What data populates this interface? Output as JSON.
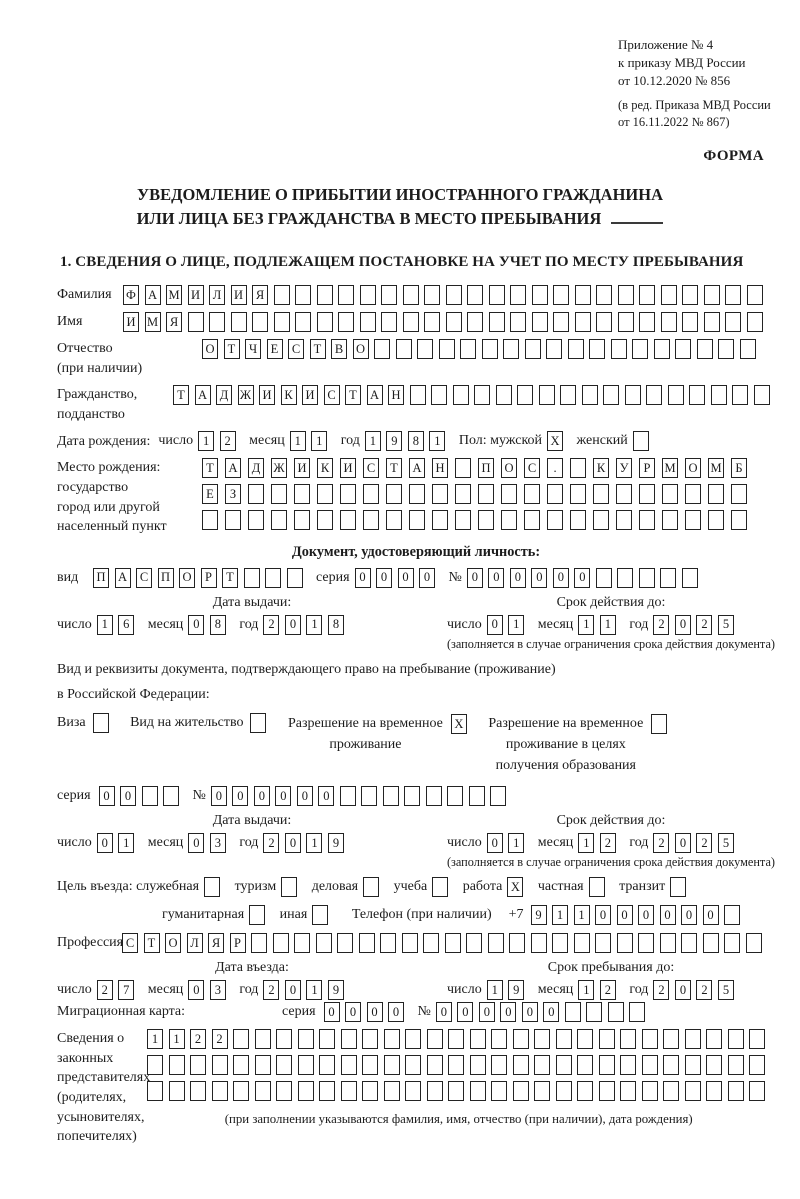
{
  "doc": {
    "appendix": [
      "Приложение № 4",
      "к приказу МВД России",
      "от 10.12.2020 № 856"
    ],
    "revision": [
      "(в ред. Приказа МВД России",
      "от 16.11.2022 № 867)"
    ],
    "form_marker": "ФОРМА",
    "title1": "УВЕДОМЛЕНИЕ О ПРИБЫТИИ ИНОСТРАННОГО ГРАЖДАНИНА",
    "title2": "ИЛИ ЛИЦА БЕЗ ГРАЖДАНСТВА В МЕСТО ПРЕБЫВАНИЯ",
    "section1_heading": "1. СВЕДЕНИЯ О ЛИЦЕ, ПОДЛЕЖАЩЕМ ПОСТАНОВКЕ НА УЧЕТ ПО МЕСТУ ПРЕБЫВАНИЯ"
  },
  "labels": {
    "surname": "Фамилия",
    "given_name": "Имя",
    "patronymic": "Отчество",
    "patronymic_note": "(при наличии)",
    "citizenship1": "Гражданство,",
    "citizenship2": "подданство",
    "birth_date": "Дата рождения:",
    "day": "число",
    "month": "месяц",
    "year": "год",
    "sex_male": "Пол: мужской",
    "sex_female": "женский",
    "birth_place1": "Место рождения:",
    "birth_place2": "государство",
    "birth_place3": "город или другой",
    "birth_place4": "населенный пункт",
    "identity_doc_heading": "Документ, удостоверяющий личность:",
    "doc_type": "вид",
    "series": "серия",
    "number": "№",
    "issue_date": "Дата выдачи:",
    "valid_until": "Срок действия до:",
    "valid_note": "(заполняется в случае ограничения срока действия документа)",
    "residence_doc_line1": "Вид и реквизиты документа, подтверждающего право на пребывание (проживание)",
    "residence_doc_line2": "в Российской Федерации:",
    "visa": "Виза",
    "residence_permit": "Вид на жительство",
    "temp_residence1": "Разрешение на временное",
    "temp_residence2": "проживание",
    "temp_edu1": "Разрешение на временное",
    "temp_edu2": "проживание в целях",
    "temp_edu3": "получения образования",
    "purpose_head": "Цель въезда: служебная",
    "tourism": "туризм",
    "business": "деловая",
    "study": "учеба",
    "work": "работа",
    "private": "частная",
    "transit": "транзит",
    "humanitarian": "гуманитарная",
    "other": "иная",
    "phone": "Телефон (при наличии)",
    "phone_prefix": "+7",
    "profession": "Профессия",
    "entry_date": "Дата въезда:",
    "stay_until": "Срок пребывания до:",
    "migration_card": "Миграционная карта:",
    "representatives": [
      "Сведения о",
      "законных",
      "представителях",
      "(родителях,",
      "усыновителях,",
      "попечителях)"
    ],
    "representatives_note": "(при заполнении указываются фамилия, имя, отчество (при наличии), дата рождения)"
  },
  "fields": {
    "surname": {
      "v": "ФАМИЛИЯ",
      "n": 30
    },
    "given_name": {
      "v": "ИМЯ",
      "n": 30
    },
    "patronymic": {
      "v": "ОТЧЕСТВО",
      "n": 26
    },
    "citizenship": {
      "v": "ТАДЖИКИСТАН",
      "n": 28
    },
    "birth_day": {
      "v": "12",
      "n": 2
    },
    "birth_month": {
      "v": "11",
      "n": 2
    },
    "birth_year": {
      "v": "1981",
      "n": 4
    },
    "sex_male": {
      "v": "X",
      "n": 1
    },
    "sex_female": {
      "v": "",
      "n": 1
    },
    "birth_place_row1": {
      "v": "ТАДЖИКИСТАН ПОС. КУРМОМБ",
      "n": 24
    },
    "birth_place_row2": {
      "v": "ЕЗ",
      "n": 24
    },
    "birth_place_row3": {
      "v": "",
      "n": 24
    },
    "id_type": {
      "v": "ПАСПОРТ",
      "n": 10
    },
    "id_series": {
      "v": "0000",
      "n": 4
    },
    "id_number": {
      "v": "000000",
      "n": 11
    },
    "id_issue_day": {
      "v": "16",
      "n": 2
    },
    "id_issue_month": {
      "v": "08",
      "n": 2
    },
    "id_issue_year": {
      "v": "2018",
      "n": 4
    },
    "id_valid_day": {
      "v": "01",
      "n": 2
    },
    "id_valid_month": {
      "v": "11",
      "n": 2
    },
    "id_valid_year": {
      "v": "2025",
      "n": 4
    },
    "cb_visa": {
      "v": "",
      "n": 1
    },
    "cb_residence_permit": {
      "v": "",
      "n": 1
    },
    "cb_temp_residence": {
      "v": "X",
      "n": 1
    },
    "cb_temp_edu": {
      "v": "",
      "n": 1
    },
    "res_series": {
      "v": "00",
      "n": 4
    },
    "res_number": {
      "v": "000000",
      "n": 14
    },
    "res_issue_day": {
      "v": "01",
      "n": 2
    },
    "res_issue_month": {
      "v": "03",
      "n": 2
    },
    "res_issue_year": {
      "v": "2019",
      "n": 4
    },
    "res_valid_day": {
      "v": "01",
      "n": 2
    },
    "res_valid_month": {
      "v": "12",
      "n": 2
    },
    "res_valid_year": {
      "v": "2025",
      "n": 4
    },
    "cb_official": {
      "v": "",
      "n": 1
    },
    "cb_tourism": {
      "v": "",
      "n": 1
    },
    "cb_business": {
      "v": "",
      "n": 1
    },
    "cb_study": {
      "v": "",
      "n": 1
    },
    "cb_work": {
      "v": "X",
      "n": 1
    },
    "cb_private": {
      "v": "",
      "n": 1
    },
    "cb_transit": {
      "v": "",
      "n": 1
    },
    "cb_humanitarian": {
      "v": "",
      "n": 1
    },
    "cb_other": {
      "v": "",
      "n": 1
    },
    "phone": {
      "v": "911000000",
      "n": 10
    },
    "profession": {
      "v": "СТОЛЯР",
      "n": 30
    },
    "entry_day": {
      "v": "27",
      "n": 2
    },
    "entry_month": {
      "v": "03",
      "n": 2
    },
    "entry_year": {
      "v": "2019",
      "n": 4
    },
    "stay_day": {
      "v": "19",
      "n": 2
    },
    "stay_month": {
      "v": "12",
      "n": 2
    },
    "stay_year": {
      "v": "2025",
      "n": 4
    },
    "mc_series": {
      "v": "0000",
      "n": 4
    },
    "mc_number": {
      "v": "000000",
      "n": 10
    },
    "rep_row1": {
      "v": "1122",
      "n": 29
    },
    "rep_row2": {
      "v": "",
      "n": 29
    },
    "rep_row3": {
      "v": "",
      "n": 29
    }
  }
}
